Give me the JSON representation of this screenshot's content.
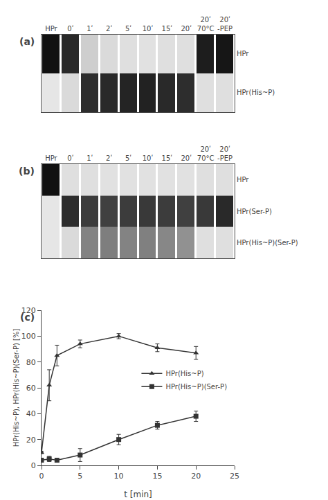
{
  "chart_data": [
    {
      "type": "heatmap",
      "title": "(a)",
      "categories": [
        "HPr",
        "0ʹ",
        "1ʹ",
        "2ʹ",
        "5ʹ",
        "10ʹ",
        "15ʹ",
        "20ʹ",
        "20ʹ\n70°C",
        "20ʹ\n-PEP"
      ],
      "rows": [
        "HPr",
        "HPr(His~P)"
      ],
      "cells": [
        [
          0.9,
          0.8,
          0.1,
          0.05,
          0.03,
          0.02,
          0.03,
          0.03,
          0.85,
          0.88
        ],
        [
          0.0,
          0.05,
          0.78,
          0.8,
          0.82,
          0.83,
          0.8,
          0.78,
          0.03,
          0.03
        ]
      ]
    },
    {
      "type": "heatmap",
      "title": "(b)",
      "categories": [
        "HPr",
        "0ʹ",
        "1ʹ",
        "2ʹ",
        "5ʹ",
        "10ʹ",
        "15ʹ",
        "20ʹ",
        "20ʹ\n70°C",
        "20ʹ\n-PEP"
      ],
      "rows": [
        "HPr",
        "HPr(Ser-P)",
        "HPr(His~P)(Ser-P)"
      ],
      "cells": [
        [
          0.9,
          0.03,
          0.03,
          0.02,
          0.02,
          0.02,
          0.02,
          0.02,
          0.03,
          0.03
        ],
        [
          0.0,
          0.78,
          0.72,
          0.7,
          0.72,
          0.73,
          0.72,
          0.7,
          0.73,
          0.8
        ],
        [
          0.0,
          0.05,
          0.42,
          0.44,
          0.42,
          0.43,
          0.4,
          0.36,
          0.03,
          0.03
        ]
      ]
    },
    {
      "type": "line",
      "title": "(c)",
      "x_label": "t [min]",
      "y_label": "HPr(His~P), HPr(His~P)(Ser-P) [%]",
      "x": [
        0,
        1,
        2,
        5,
        10,
        15,
        20
      ],
      "series": [
        {
          "name": "HPr(His~P)",
          "color": "#333333",
          "marker": "triangle-up",
          "values": [
            10,
            62,
            85,
            94,
            100,
            91,
            87
          ],
          "yerr": [
            1,
            12,
            8,
            3,
            2,
            3,
            5
          ]
        },
        {
          "name": "HPr(His~P)(Ser-P)",
          "color": "#333333",
          "marker": "square",
          "values": [
            4,
            5,
            4,
            8,
            20,
            31,
            38
          ],
          "yerr": [
            1,
            2,
            1,
            5,
            4,
            3,
            4
          ]
        }
      ],
      "xlim": [
        0,
        25
      ],
      "ylim": [
        0,
        120
      ],
      "xticks": [
        0,
        5,
        10,
        15,
        20,
        25
      ],
      "yticks": [
        0,
        20,
        40,
        60,
        80,
        100,
        120
      ],
      "grid": false,
      "legend": "right"
    }
  ]
}
